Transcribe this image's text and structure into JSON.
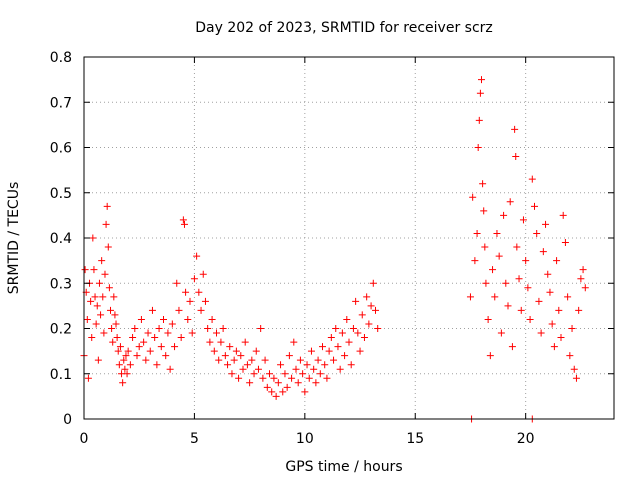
{
  "chart_data": {
    "type": "scatter",
    "title": "Day 202 of 2023, SRMTID for receiver scrz",
    "xlabel": "GPS time / hours",
    "ylabel": "SRMTID / TECUs",
    "xlim": [
      0,
      24
    ],
    "ylim": [
      0,
      0.8
    ],
    "xticks": [
      0,
      5,
      10,
      15,
      20
    ],
    "xtick_labels": [
      "0",
      "5",
      "10",
      "15",
      "20"
    ],
    "yticks": [
      0,
      0.1,
      0.2,
      0.3,
      0.4,
      0.5,
      0.6,
      0.7,
      0.8
    ],
    "ytick_labels": [
      "0",
      "0.1",
      "0.2",
      "0.3",
      "0.4",
      "0.5",
      "0.6",
      "0.7",
      "0.8"
    ],
    "grid": true,
    "marker": "+",
    "color": "#ff0000",
    "series": [
      {
        "name": "SRMTID",
        "points": [
          [
            0.0,
            0.14
          ],
          [
            0.05,
            0.33
          ],
          [
            0.1,
            0.28
          ],
          [
            0.15,
            0.22
          ],
          [
            0.2,
            0.09
          ],
          [
            0.25,
            0.3
          ],
          [
            0.3,
            0.26
          ],
          [
            0.35,
            0.18
          ],
          [
            0.4,
            0.4
          ],
          [
            0.45,
            0.33
          ],
          [
            0.5,
            0.27
          ],
          [
            0.55,
            0.21
          ],
          [
            0.6,
            0.25
          ],
          [
            0.65,
            0.13
          ],
          [
            0.7,
            0.3
          ],
          [
            0.75,
            0.23
          ],
          [
            0.8,
            0.35
          ],
          [
            0.85,
            0.27
          ],
          [
            0.9,
            0.19
          ],
          [
            0.95,
            0.32
          ],
          [
            1.0,
            0.43
          ],
          [
            1.05,
            0.47
          ],
          [
            1.1,
            0.38
          ],
          [
            1.15,
            0.29
          ],
          [
            1.2,
            0.24
          ],
          [
            1.25,
            0.2
          ],
          [
            1.3,
            0.17
          ],
          [
            1.35,
            0.27
          ],
          [
            1.4,
            0.23
          ],
          [
            1.45,
            0.21
          ],
          [
            1.5,
            0.18
          ],
          [
            1.55,
            0.15
          ],
          [
            1.6,
            0.12
          ],
          [
            1.65,
            0.16
          ],
          [
            1.7,
            0.1
          ],
          [
            1.75,
            0.08
          ],
          [
            1.8,
            0.13
          ],
          [
            1.85,
            0.11
          ],
          [
            1.9,
            0.14
          ],
          [
            1.95,
            0.1
          ],
          [
            2.0,
            0.15
          ],
          [
            2.1,
            0.12
          ],
          [
            2.2,
            0.18
          ],
          [
            2.3,
            0.2
          ],
          [
            2.4,
            0.14
          ],
          [
            2.5,
            0.16
          ],
          [
            2.6,
            0.22
          ],
          [
            2.7,
            0.17
          ],
          [
            2.8,
            0.13
          ],
          [
            2.9,
            0.19
          ],
          [
            3.0,
            0.15
          ],
          [
            3.1,
            0.24
          ],
          [
            3.2,
            0.18
          ],
          [
            3.3,
            0.12
          ],
          [
            3.4,
            0.2
          ],
          [
            3.5,
            0.16
          ],
          [
            3.6,
            0.22
          ],
          [
            3.7,
            0.14
          ],
          [
            3.8,
            0.19
          ],
          [
            3.9,
            0.11
          ],
          [
            4.0,
            0.21
          ],
          [
            4.1,
            0.16
          ],
          [
            4.2,
            0.3
          ],
          [
            4.3,
            0.24
          ],
          [
            4.4,
            0.18
          ],
          [
            4.5,
            0.44
          ],
          [
            4.55,
            0.43
          ],
          [
            4.6,
            0.28
          ],
          [
            4.7,
            0.22
          ],
          [
            4.8,
            0.26
          ],
          [
            4.9,
            0.19
          ],
          [
            5.0,
            0.31
          ],
          [
            5.1,
            0.36
          ],
          [
            5.2,
            0.28
          ],
          [
            5.3,
            0.24
          ],
          [
            5.4,
            0.32
          ],
          [
            5.5,
            0.26
          ],
          [
            5.6,
            0.2
          ],
          [
            5.7,
            0.17
          ],
          [
            5.8,
            0.22
          ],
          [
            5.9,
            0.15
          ],
          [
            6.0,
            0.19
          ],
          [
            6.1,
            0.13
          ],
          [
            6.2,
            0.17
          ],
          [
            6.3,
            0.2
          ],
          [
            6.4,
            0.14
          ],
          [
            6.5,
            0.12
          ],
          [
            6.6,
            0.16
          ],
          [
            6.7,
            0.1
          ],
          [
            6.8,
            0.13
          ],
          [
            6.9,
            0.15
          ],
          [
            7.0,
            0.09
          ],
          [
            7.1,
            0.14
          ],
          [
            7.2,
            0.11
          ],
          [
            7.3,
            0.17
          ],
          [
            7.4,
            0.12
          ],
          [
            7.5,
            0.08
          ],
          [
            7.6,
            0.13
          ],
          [
            7.7,
            0.1
          ],
          [
            7.8,
            0.15
          ],
          [
            7.9,
            0.11
          ],
          [
            8.0,
            0.2
          ],
          [
            8.1,
            0.09
          ],
          [
            8.2,
            0.13
          ],
          [
            8.3,
            0.07
          ],
          [
            8.4,
            0.1
          ],
          [
            8.5,
            0.06
          ],
          [
            8.6,
            0.09
          ],
          [
            8.7,
            0.05
          ],
          [
            8.8,
            0.08
          ],
          [
            8.9,
            0.12
          ],
          [
            9.0,
            0.06
          ],
          [
            9.1,
            0.1
          ],
          [
            9.2,
            0.07
          ],
          [
            9.3,
            0.14
          ],
          [
            9.4,
            0.09
          ],
          [
            9.5,
            0.17
          ],
          [
            9.6,
            0.11
          ],
          [
            9.7,
            0.08
          ],
          [
            9.8,
            0.13
          ],
          [
            9.9,
            0.1
          ],
          [
            10.0,
            0.06
          ],
          [
            10.1,
            0.12
          ],
          [
            10.2,
            0.09
          ],
          [
            10.3,
            0.15
          ],
          [
            10.4,
            0.11
          ],
          [
            10.5,
            0.08
          ],
          [
            10.6,
            0.13
          ],
          [
            10.7,
            0.1
          ],
          [
            10.8,
            0.16
          ],
          [
            10.9,
            0.12
          ],
          [
            11.0,
            0.09
          ],
          [
            11.1,
            0.15
          ],
          [
            11.2,
            0.18
          ],
          [
            11.3,
            0.13
          ],
          [
            11.4,
            0.2
          ],
          [
            11.5,
            0.16
          ],
          [
            11.6,
            0.11
          ],
          [
            11.7,
            0.19
          ],
          [
            11.8,
            0.14
          ],
          [
            11.9,
            0.22
          ],
          [
            12.0,
            0.17
          ],
          [
            12.1,
            0.12
          ],
          [
            12.2,
            0.2
          ],
          [
            12.3,
            0.26
          ],
          [
            12.4,
            0.19
          ],
          [
            12.5,
            0.15
          ],
          [
            12.6,
            0.23
          ],
          [
            12.7,
            0.18
          ],
          [
            12.8,
            0.27
          ],
          [
            12.9,
            0.21
          ],
          [
            13.0,
            0.25
          ],
          [
            13.1,
            0.3
          ],
          [
            13.2,
            0.24
          ],
          [
            13.3,
            0.2
          ],
          [
            17.5,
            0.27
          ],
          [
            17.6,
            0.49
          ],
          [
            17.7,
            0.35
          ],
          [
            17.8,
            0.41
          ],
          [
            17.85,
            0.6
          ],
          [
            17.9,
            0.66
          ],
          [
            17.95,
            0.72
          ],
          [
            18.0,
            0.75
          ],
          [
            18.05,
            0.52
          ],
          [
            18.1,
            0.46
          ],
          [
            18.15,
            0.38
          ],
          [
            18.2,
            0.3
          ],
          [
            18.3,
            0.22
          ],
          [
            18.4,
            0.14
          ],
          [
            18.5,
            0.33
          ],
          [
            18.6,
            0.27
          ],
          [
            18.7,
            0.41
          ],
          [
            18.8,
            0.36
          ],
          [
            18.9,
            0.19
          ],
          [
            19.0,
            0.45
          ],
          [
            19.1,
            0.3
          ],
          [
            19.2,
            0.25
          ],
          [
            19.3,
            0.48
          ],
          [
            19.4,
            0.16
          ],
          [
            19.5,
            0.64
          ],
          [
            19.55,
            0.58
          ],
          [
            19.6,
            0.38
          ],
          [
            19.7,
            0.31
          ],
          [
            19.8,
            0.24
          ],
          [
            19.9,
            0.44
          ],
          [
            20.0,
            0.35
          ],
          [
            20.1,
            0.29
          ],
          [
            20.2,
            0.22
          ],
          [
            20.3,
            0.53
          ],
          [
            20.4,
            0.47
          ],
          [
            20.5,
            0.41
          ],
          [
            20.6,
            0.26
          ],
          [
            20.7,
            0.19
          ],
          [
            20.8,
            0.37
          ],
          [
            20.9,
            0.43
          ],
          [
            21.0,
            0.32
          ],
          [
            21.1,
            0.28
          ],
          [
            21.2,
            0.21
          ],
          [
            21.3,
            0.16
          ],
          [
            21.4,
            0.35
          ],
          [
            21.5,
            0.24
          ],
          [
            21.6,
            0.18
          ],
          [
            21.7,
            0.45
          ],
          [
            21.8,
            0.39
          ],
          [
            21.9,
            0.27
          ],
          [
            22.0,
            0.14
          ],
          [
            22.1,
            0.2
          ],
          [
            22.2,
            0.11
          ],
          [
            22.3,
            0.09
          ],
          [
            22.4,
            0.24
          ],
          [
            22.5,
            0.31
          ],
          [
            22.6,
            0.33
          ],
          [
            22.7,
            0.29
          ],
          [
            17.55,
            0.0
          ],
          [
            20.3,
            0.0
          ]
        ]
      }
    ]
  }
}
